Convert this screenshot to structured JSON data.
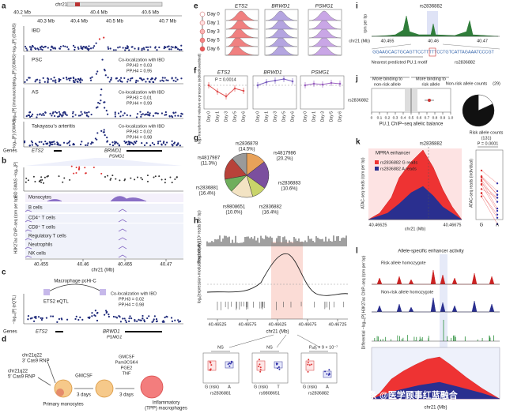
{
  "watermark": "头条 @医学顾事红蓝融合",
  "a": {
    "letter": "a",
    "chrom": "chr21",
    "ruler": [
      "40.2 Mb",
      "40.4 Mb",
      "40.6 Mb"
    ],
    "axis": [
      "40.3 Mb",
      "40.4 Mb",
      "40.5 Mb",
      "40.7 Mb"
    ],
    "tracks": [
      {
        "name": "IBD",
        "ylabel": "−log₁₀[P] (GWAS)"
      },
      {
        "name": "PSC",
        "ylabel": "−log₁₀[P] (GWAS)",
        "coloc": [
          "Co-localization with IBD",
          "PP.H3 = 0.03",
          "PP.H4 = 0.95"
        ]
      },
      {
        "name": "AS",
        "ylabel": "−log₁₀[P] (immunochip)",
        "coloc": [
          "Co-localization with IBD",
          "PP.H3 = 0.01",
          "PP.H4 = 0.99"
        ]
      },
      {
        "name": "Takayasu's arteritis",
        "ylabel": "−log₁₀[P] (GWAS)",
        "coloc": [
          "Co-localization with IBD",
          "PP.H3 = 0.02",
          "PP.H4 = 0.98"
        ]
      }
    ],
    "genes_label": "Genes",
    "genes": [
      "ETS2",
      "BRWD1",
      "PSMG1"
    ]
  },
  "b": {
    "letter": "b",
    "gwas_label": "IBD GWAS −log₁₀[P]",
    "chip_label": "H3K27ac ChIP–seq (rpm per bp)",
    "cells": [
      "Monocytes",
      "B cells",
      "CD4⁺ T cells",
      "CD8⁺ T cells",
      "Regulatory T cells",
      "Neutrophils",
      "NK cells"
    ],
    "ticks": [
      "40.455",
      "40.46",
      "40.465",
      "40.47"
    ],
    "xlabel": "chr21 (Mb)"
  },
  "c": {
    "letter": "c",
    "hic": "Macrophage pcHi-C",
    "eqtl": "ETS2 eQTL",
    "coloc": [
      "Co-localization with IBD",
      "PP.H3 = 0.02",
      "PP.H4 = 0.98"
    ],
    "ylabel": "−log₁₀[P] (eQTL)",
    "genes_label": "Genes",
    "genes": [
      "ETS2",
      "BRWD1",
      "PSMG1"
    ]
  },
  "d": {
    "letter": "d",
    "rnp3": [
      "chr21q22",
      "3′ Cas9 RNP"
    ],
    "rnp5": [
      "chr21q22",
      "5′ Cas9 RNP"
    ],
    "step1": [
      "GMCSF",
      "3 days"
    ],
    "step2": [
      "GMCSF",
      "Pam3CSK4",
      "PGE2",
      "TNF",
      "3 days"
    ],
    "start": "Primary monocytes",
    "end": [
      "Inflammatory",
      "(TPP) macrophages"
    ]
  },
  "e": {
    "letter": "e",
    "genes": [
      "ETS2",
      "BRWD1",
      "PSMG1"
    ],
    "days": [
      "Day 0",
      "Day 1",
      "Day 3",
      "Day 5",
      "Day 6"
    ]
  },
  "f": {
    "letter": "f",
    "genes": [
      "ETS2",
      "BRWD1",
      "PSMG1"
    ],
    "p": "P = 0.0014",
    "ylabel": "log₂-transformed relative expression (edited/unedited)",
    "days": [
      "Day 0",
      "Day 1",
      "Day 3",
      "Day 5",
      "Day 6"
    ]
  },
  "g": {
    "letter": "g",
    "type": "pie",
    "categories": [
      "rs2836878",
      "rs4817986",
      "rs2836883",
      "rs2836882",
      "rs9808651",
      "rs2836881",
      "rs4817987"
    ],
    "values": [
      14.5,
      20.2,
      10.6,
      16.4,
      10.0,
      16.4,
      11.3
    ],
    "value_labels": [
      "(14.5%)",
      "(20.2%)",
      "(10.6%)",
      "(16.4%)",
      "(10.0%)",
      "(16.4%)",
      "(11.3%)"
    ],
    "colors": [
      "#e8a25a",
      "#7b4f9e",
      "#c9d46a",
      "#f3e3c3",
      "#6fae5c",
      "#b8423a",
      "#9a9a9a"
    ]
  },
  "h": {
    "letter": "h",
    "depth_label": "Read depth (10³ reads per bp)",
    "activity_label": "log₂[expression-modulating activity]",
    "ticks": [
      "40.46525",
      "40.46575",
      "40.46625",
      "40.46675",
      "40.46725"
    ],
    "xlabel": "chr21 (Mb)",
    "tests": [
      {
        "p": "NS",
        "alleles": [
          "G (risk)",
          "A"
        ],
        "snp": "rs2836881"
      },
      {
        "p": "NS",
        "alleles": [
          "G (risk)",
          "T"
        ],
        "snp": "rs9808651"
      },
      {
        "p": "Pₐdⱼ = 9 × 10⁻⁷",
        "alleles": [
          "G (risk)",
          "A"
        ],
        "snp": "rs2836882"
      }
    ]
  },
  "i": {
    "letter": "i",
    "snp": "rs2836882",
    "ylabel": "rpm per bp",
    "xlabel": "chr21 (Mb)",
    "ticks": [
      "40.455",
      "40.46",
      "40.47"
    ],
    "sequence": "GGAAGCACTGCAGTTCCTTTTTCCTGTCATTAGAAATCCCGT",
    "motif": "Nearest predicted PU.1 motif",
    "snp2": "rs2836882"
  },
  "j": {
    "letter": "j",
    "left": [
      "More binding to",
      "non-risk allele"
    ],
    "right": [
      "More binding to",
      "risk allele"
    ],
    "snp": "rs2836882",
    "ticks": [
      "0",
      "0.1",
      "0.2",
      "0.3",
      "0.4",
      "0.5",
      "0.6",
      "0.7",
      "0.8",
      "0.9",
      "1.0"
    ],
    "xlabel": "PU.1 ChIP–seq allelic balance",
    "pie": {
      "type": "pie",
      "categories": [
        "Non-risk allele counts",
        "Risk allele counts"
      ],
      "values": [
        29,
        131
      ],
      "value_labels": [
        "(29)",
        "(131)"
      ],
      "colors": [
        "#ffffff",
        "#111111"
      ]
    }
  },
  "k": {
    "letter": "k",
    "enhancer": "MPRA enhancer",
    "snp": "rs2836882",
    "legend": [
      "rs2836882 G reads",
      "rs2836882 A reads"
    ],
    "ylabel": "ATAC-seq reads (rpm per bp)",
    "ticks": [
      "40.46625",
      "40.46675"
    ],
    "xlabel": "chr21 (Mb)",
    "p": "P = 0.0001",
    "ylabel2": "ATAC-seq reads (individual)",
    "alleles": [
      "G",
      "A"
    ]
  },
  "l": {
    "letter": "l",
    "title": "Allele-specific enhancer activity",
    "risk": "Risk allele homozygote",
    "nonrisk": "Non-risk allele homozygote",
    "ylabel": "H3K27ac ChIP–seq (rpm per bp)",
    "diff": "Differential −log₁₀[P]",
    "xlabel": "chr21 (Mb)"
  }
}
